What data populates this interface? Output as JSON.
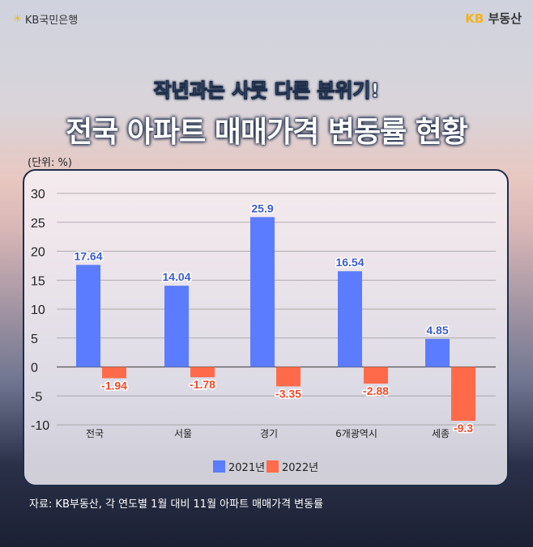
{
  "header": {
    "bank_logo": "KB국민은행",
    "brand_logo_kb": "KB",
    "brand_logo_text": "부동산"
  },
  "subtitle": "작년과는 사뭇 다른 분위기!",
  "title": "전국 아파트 매매가격 변동률 현황",
  "unit": "(단위: %)",
  "source": "자료: KB부동산, 각 연도별 1월 대비 11월 아파트 매매가격 변동률",
  "chart_data": {
    "type": "bar",
    "categories": [
      "전국",
      "서울",
      "경기",
      "6개광역시",
      "세종"
    ],
    "series": [
      {
        "name": "2021년",
        "color": "#5b7cff",
        "values": [
          17.64,
          14.04,
          25.9,
          16.54,
          4.85
        ],
        "labels": [
          "17.64",
          "14.04",
          "25.9",
          "16.54",
          "4.85"
        ]
      },
      {
        "name": "2022년",
        "color": "#ff6b4a",
        "values": [
          -1.94,
          -1.78,
          -3.35,
          -2.88,
          -9.3
        ],
        "labels": [
          "-1.94",
          "-1.78",
          "-3.35",
          "-2.88",
          "-9.3"
        ]
      }
    ],
    "ylim": [
      -10,
      30
    ],
    "yticks": [
      "30",
      "25",
      "20",
      "15",
      "10",
      "5",
      "0",
      "-5",
      "-10"
    ],
    "grid": true,
    "legend": "bottom"
  }
}
